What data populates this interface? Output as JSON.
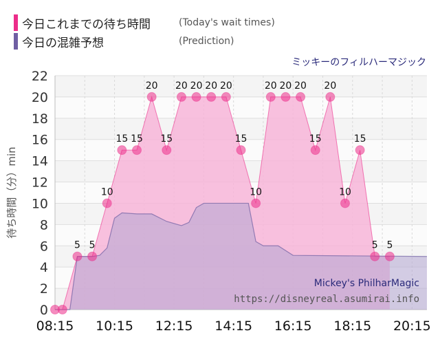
{
  "legend": {
    "actual_label": "今日これまでの待ち時間",
    "actual_label_en": "(Today's wait times)",
    "actual_color": "#ec2d8a",
    "prediction_label": "今日の混雑予想",
    "prediction_label_en": "(Prediction)",
    "prediction_color": "#6f5fa3"
  },
  "attraction_name": "ミッキーのフィルハーマジック",
  "watermark": {
    "title": "Mickey's PhilharMagic",
    "url": "https://disneyreal.asumirai.info"
  },
  "chart_data": {
    "type": "area",
    "ylabel": "待ち時間（分）min",
    "ylim": [
      0,
      22
    ],
    "yticks": [
      0,
      2,
      4,
      6,
      8,
      10,
      12,
      14,
      16,
      18,
      20,
      22
    ],
    "xlim": [
      "08:15",
      "20:45"
    ],
    "xtick_labels": [
      "08:15",
      "10:15",
      "12:15",
      "14:15",
      "16:15",
      "18:15",
      "20:15"
    ],
    "grid": true,
    "actual": {
      "name": "今日これまでの待ち時間",
      "color": "#ec2d8a",
      "fill": "#f7b5d8",
      "points": [
        {
          "t": "08:15",
          "v": 0
        },
        {
          "t": "08:30",
          "v": 0
        },
        {
          "t": "09:00",
          "v": 5
        },
        {
          "t": "09:30",
          "v": 5
        },
        {
          "t": "10:00",
          "v": 10
        },
        {
          "t": "10:30",
          "v": 15
        },
        {
          "t": "11:00",
          "v": 15
        },
        {
          "t": "11:30",
          "v": 20
        },
        {
          "t": "12:00",
          "v": 15
        },
        {
          "t": "12:30",
          "v": 20
        },
        {
          "t": "13:00",
          "v": 20
        },
        {
          "t": "13:30",
          "v": 20
        },
        {
          "t": "14:00",
          "v": 20
        },
        {
          "t": "14:30",
          "v": 15
        },
        {
          "t": "15:00",
          "v": 10
        },
        {
          "t": "15:30",
          "v": 20
        },
        {
          "t": "16:00",
          "v": 20
        },
        {
          "t": "16:30",
          "v": 20
        },
        {
          "t": "17:00",
          "v": 15
        },
        {
          "t": "17:30",
          "v": 20
        },
        {
          "t": "18:00",
          "v": 10
        },
        {
          "t": "18:30",
          "v": 15
        },
        {
          "t": "19:00",
          "v": 5
        },
        {
          "t": "19:30",
          "v": 5
        }
      ],
      "data_labels": [
        {
          "t": "09:00",
          "v": 5
        },
        {
          "t": "09:30",
          "v": 5
        },
        {
          "t": "10:00",
          "v": 10
        },
        {
          "t": "10:30",
          "v": 15
        },
        {
          "t": "11:00",
          "v": 15
        },
        {
          "t": "11:30",
          "v": 20
        },
        {
          "t": "12:00",
          "v": 15
        },
        {
          "t": "12:30",
          "v": 20
        },
        {
          "t": "13:00",
          "v": 20
        },
        {
          "t": "13:30",
          "v": 20
        },
        {
          "t": "14:00",
          "v": 20
        },
        {
          "t": "14:30",
          "v": 15
        },
        {
          "t": "15:00",
          "v": 10
        },
        {
          "t": "15:30",
          "v": 20
        },
        {
          "t": "16:00",
          "v": 20
        },
        {
          "t": "16:30",
          "v": 20
        },
        {
          "t": "17:00",
          "v": 15
        },
        {
          "t": "17:30",
          "v": 20
        },
        {
          "t": "18:00",
          "v": 10
        },
        {
          "t": "18:30",
          "v": 15
        },
        {
          "t": "19:00",
          "v": 5
        },
        {
          "t": "19:30",
          "v": 5
        }
      ]
    },
    "prediction": {
      "name": "今日の混雑予想",
      "color": "#6f5fa3",
      "fill": "#b3a6d2",
      "points": [
        {
          "t": "08:15",
          "v": 0
        },
        {
          "t": "08:30",
          "v": 0
        },
        {
          "t": "08:45",
          "v": 0
        },
        {
          "t": "09:00",
          "v": 5
        },
        {
          "t": "09:30",
          "v": 5
        },
        {
          "t": "09:45",
          "v": 5.1
        },
        {
          "t": "10:00",
          "v": 5.8
        },
        {
          "t": "10:15",
          "v": 8.6
        },
        {
          "t": "10:30",
          "v": 9.1
        },
        {
          "t": "11:00",
          "v": 9.0
        },
        {
          "t": "11:30",
          "v": 9.0
        },
        {
          "t": "12:00",
          "v": 8.3
        },
        {
          "t": "12:30",
          "v": 7.9
        },
        {
          "t": "12:45",
          "v": 8.2
        },
        {
          "t": "13:00",
          "v": 9.6
        },
        {
          "t": "13:15",
          "v": 10.0
        },
        {
          "t": "14:15",
          "v": 10.0
        },
        {
          "t": "14:45",
          "v": 10.0
        },
        {
          "t": "15:00",
          "v": 6.4
        },
        {
          "t": "15:15",
          "v": 6.0
        },
        {
          "t": "15:45",
          "v": 6.0
        },
        {
          "t": "16:15",
          "v": 5.1
        },
        {
          "t": "20:45",
          "v": 5.0
        }
      ]
    }
  }
}
